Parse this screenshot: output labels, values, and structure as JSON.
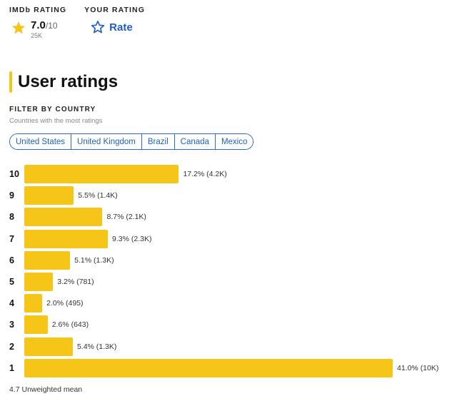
{
  "imdb_rating": {
    "label": "IMDb RATING",
    "score": "7.0",
    "out_of": "/10",
    "count": "25K"
  },
  "your_rating": {
    "label": "YOUR RATING",
    "action": "Rate"
  },
  "section": {
    "title": "User ratings"
  },
  "filter": {
    "heading": "FILTER BY COUNTRY",
    "subheading": "Countries with the most ratings",
    "countries": [
      "United States",
      "United Kingdom",
      "Brazil",
      "Canada",
      "Mexico"
    ]
  },
  "chart_data": {
    "type": "bar",
    "orientation": "horizontal",
    "categories": [
      "10",
      "9",
      "8",
      "7",
      "6",
      "5",
      "4",
      "3",
      "2",
      "1"
    ],
    "values": [
      17.2,
      5.5,
      8.7,
      9.3,
      5.1,
      3.2,
      2.0,
      2.6,
      5.4,
      41.0
    ],
    "value_labels": [
      "17.2% (4.2K)",
      "5.5% (1.4K)",
      "8.7% (2.1K)",
      "9.3% (2.3K)",
      "5.1% (1.3K)",
      "3.2% (781)",
      "2.0% (495)",
      "2.6% (643)",
      "5.4% (1.3K)",
      "41.0% (10K)"
    ],
    "unit": "%",
    "xlim": [
      0,
      41.0
    ],
    "title": "",
    "xlabel": "",
    "ylabel": "",
    "bar_color": "#f5c518"
  },
  "summary": {
    "mean_text": "4.7 Unweighted mean"
  },
  "colors": {
    "accent": "#f5c518",
    "link": "#1f5fbf"
  }
}
